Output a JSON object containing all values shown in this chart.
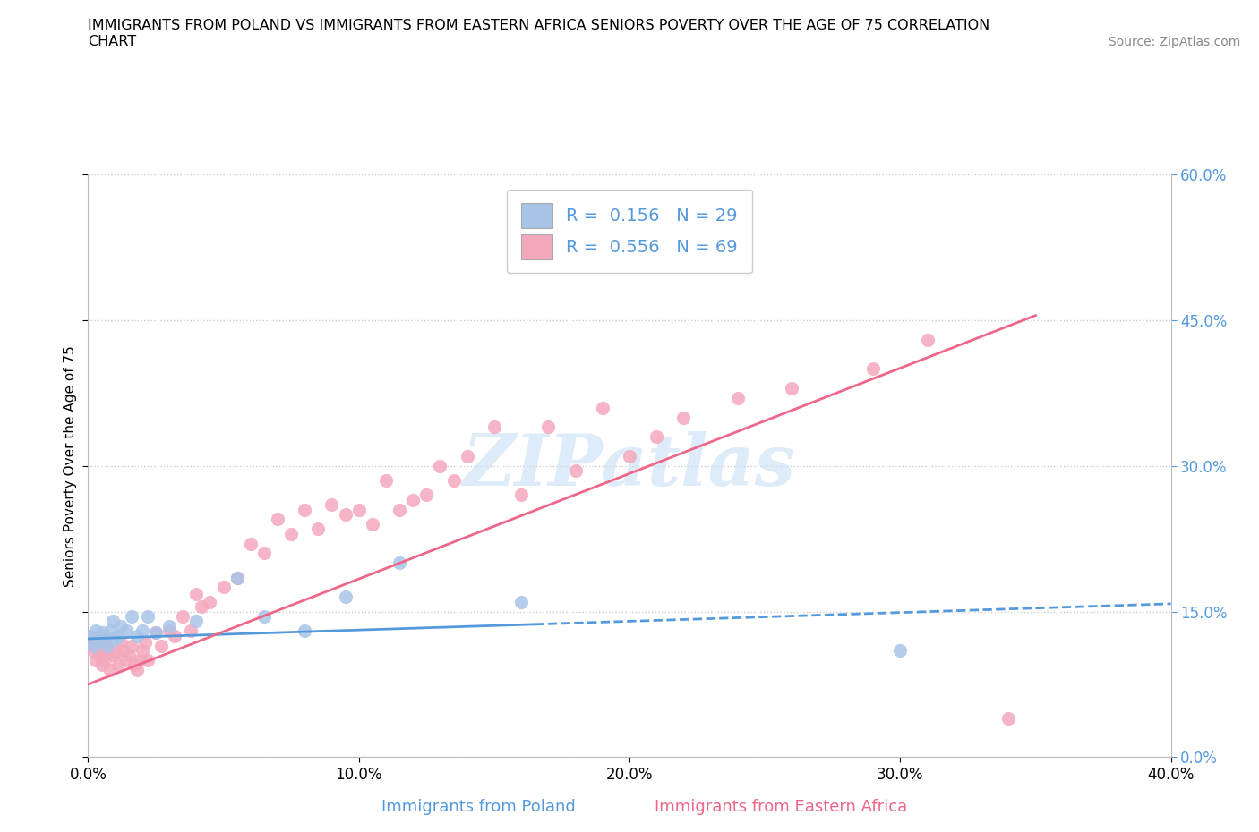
{
  "title_line1": "IMMIGRANTS FROM POLAND VS IMMIGRANTS FROM EASTERN AFRICA SENIORS POVERTY OVER THE AGE OF 75 CORRELATION",
  "title_line2": "CHART",
  "source": "Source: ZipAtlas.com",
  "ylabel": "Seniors Poverty Over the Age of 75",
  "xlabel_poland": "Immigrants from Poland",
  "xlabel_eastern_africa": "Immigrants from Eastern Africa",
  "xlim": [
    0.0,
    0.4
  ],
  "ylim": [
    0.0,
    0.6
  ],
  "yticks": [
    0.0,
    0.15,
    0.3,
    0.45,
    0.6
  ],
  "xticks": [
    0.0,
    0.1,
    0.2,
    0.3,
    0.4
  ],
  "poland_R": 0.156,
  "poland_N": 29,
  "eastern_africa_R": 0.556,
  "eastern_africa_N": 69,
  "poland_color": "#aac4e8",
  "eastern_africa_color": "#f4a8bc",
  "trend_color_blue": "#5599dd",
  "trend_color_pink": "#ee6688",
  "watermark_color": "#c8dff5",
  "background_color": "#ffffff",
  "poland_x": [
    0.001,
    0.002,
    0.003,
    0.003,
    0.004,
    0.005,
    0.005,
    0.006,
    0.007,
    0.008,
    0.009,
    0.01,
    0.011,
    0.012,
    0.014,
    0.016,
    0.018,
    0.02,
    0.022,
    0.025,
    0.03,
    0.04,
    0.055,
    0.065,
    0.08,
    0.095,
    0.115,
    0.16,
    0.3
  ],
  "poland_y": [
    0.125,
    0.115,
    0.12,
    0.13,
    0.118,
    0.122,
    0.128,
    0.125,
    0.115,
    0.13,
    0.14,
    0.122,
    0.125,
    0.135,
    0.13,
    0.145,
    0.125,
    0.13,
    0.145,
    0.128,
    0.135,
    0.14,
    0.185,
    0.145,
    0.13,
    0.165,
    0.2,
    0.16,
    0.11
  ],
  "eastern_africa_x": [
    0.001,
    0.001,
    0.002,
    0.002,
    0.003,
    0.003,
    0.004,
    0.004,
    0.005,
    0.005,
    0.006,
    0.006,
    0.007,
    0.008,
    0.009,
    0.01,
    0.011,
    0.012,
    0.013,
    0.014,
    0.015,
    0.016,
    0.017,
    0.018,
    0.019,
    0.02,
    0.021,
    0.022,
    0.025,
    0.027,
    0.03,
    0.032,
    0.035,
    0.038,
    0.04,
    0.042,
    0.045,
    0.05,
    0.055,
    0.06,
    0.065,
    0.07,
    0.075,
    0.08,
    0.085,
    0.09,
    0.095,
    0.1,
    0.105,
    0.11,
    0.115,
    0.12,
    0.125,
    0.13,
    0.135,
    0.14,
    0.15,
    0.16,
    0.17,
    0.18,
    0.19,
    0.2,
    0.21,
    0.22,
    0.24,
    0.26,
    0.29,
    0.31,
    0.34
  ],
  "eastern_africa_y": [
    0.115,
    0.125,
    0.11,
    0.12,
    0.1,
    0.118,
    0.105,
    0.115,
    0.095,
    0.108,
    0.1,
    0.118,
    0.112,
    0.09,
    0.105,
    0.108,
    0.095,
    0.118,
    0.11,
    0.1,
    0.105,
    0.115,
    0.095,
    0.09,
    0.1,
    0.11,
    0.118,
    0.1,
    0.128,
    0.115,
    0.13,
    0.125,
    0.145,
    0.13,
    0.168,
    0.155,
    0.16,
    0.175,
    0.185,
    0.22,
    0.21,
    0.245,
    0.23,
    0.255,
    0.235,
    0.26,
    0.25,
    0.255,
    0.24,
    0.285,
    0.255,
    0.265,
    0.27,
    0.3,
    0.285,
    0.31,
    0.34,
    0.27,
    0.34,
    0.295,
    0.36,
    0.31,
    0.33,
    0.35,
    0.37,
    0.38,
    0.4,
    0.43,
    0.04
  ],
  "poland_trend_x": [
    0.0,
    0.4
  ],
  "poland_trend_y": [
    0.122,
    0.158
  ],
  "eastern_trend_x": [
    0.0,
    0.35
  ],
  "eastern_trend_y": [
    0.075,
    0.455
  ]
}
